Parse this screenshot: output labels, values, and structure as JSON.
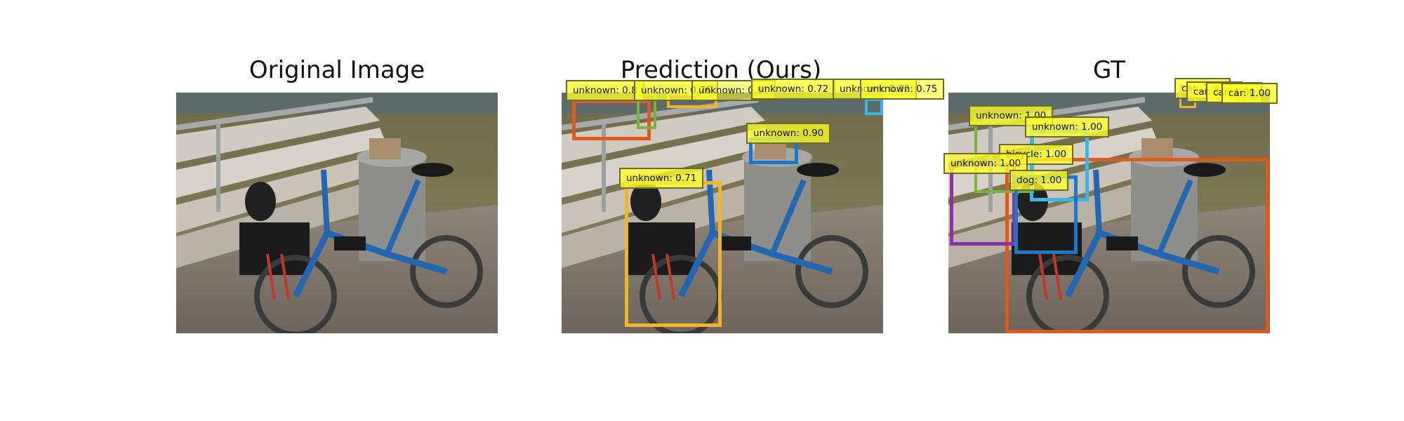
{
  "panels": [
    {
      "title": "Original Image"
    },
    {
      "title": "Prediction (Ours)"
    },
    {
      "title": "GT"
    }
  ],
  "colors": {
    "orange": "#e05a1e",
    "green": "#78b43c",
    "yellow": "#f0b428",
    "blue": "#1e78c8",
    "cyan": "#3cb4e6",
    "purple": "#8c32a0",
    "tag": "#ffff28"
  },
  "prediction_labels": [
    "unknown: 0.8",
    "unknown: 0.76",
    "unknown: 0.81",
    "unknown: 0.72",
    "unknown: 0.72",
    "unknown: 0.75",
    "unknown: 0.90",
    "unknown: 0.71"
  ],
  "gt_labels": [
    "unknown: 1.00",
    "unknown: 1.00",
    "bicycle: 1.00",
    "unknown: 1.00",
    "dog: 1.00",
    "car: 1.00",
    "car: 1.00",
    "car: 1.00",
    "car: 1.00"
  ]
}
